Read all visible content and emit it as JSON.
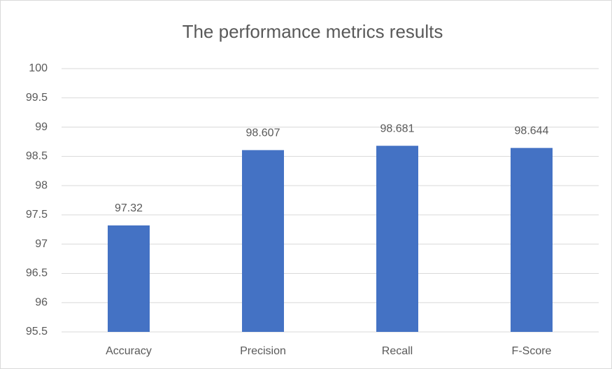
{
  "chart_data": {
    "type": "bar",
    "title": "The performance metrics results",
    "categories": [
      "Accuracy",
      "Precision",
      "Recall",
      "F-Score"
    ],
    "values": [
      97.32,
      98.607,
      98.681,
      98.644
    ],
    "color": "#4472c4",
    "ylim": [
      95.5,
      100
    ],
    "yticks": [
      95.5,
      96,
      96.5,
      97,
      97.5,
      98,
      98.5,
      99,
      99.5,
      100
    ],
    "grid": true
  }
}
